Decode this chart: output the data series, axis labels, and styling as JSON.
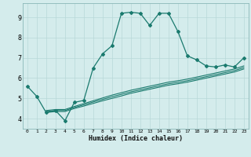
{
  "title": "",
  "xlabel": "Humidex (Indice chaleur)",
  "bg_color": "#d4ecec",
  "line_color": "#1a7a6e",
  "grid_color": "#b8d8d8",
  "xlim": [
    -0.5,
    23.5
  ],
  "ylim": [
    3.5,
    9.7
  ],
  "xticks": [
    0,
    1,
    2,
    3,
    4,
    5,
    6,
    7,
    8,
    9,
    10,
    11,
    12,
    13,
    14,
    15,
    16,
    17,
    18,
    19,
    20,
    21,
    22,
    23
  ],
  "yticks": [
    4,
    5,
    6,
    7,
    8,
    9
  ],
  "main_x": [
    0,
    1,
    2,
    3,
    4,
    5,
    6,
    7,
    8,
    9,
    10,
    11,
    12,
    13,
    14,
    15,
    16,
    17,
    18,
    19,
    20,
    21,
    22,
    23
  ],
  "main_y": [
    5.6,
    5.1,
    4.3,
    4.4,
    3.9,
    4.8,
    4.9,
    6.5,
    7.2,
    7.6,
    9.2,
    9.25,
    9.2,
    8.6,
    9.2,
    9.2,
    8.3,
    7.1,
    6.9,
    6.6,
    6.55,
    6.65,
    6.55,
    7.0
  ],
  "line1_x": [
    2,
    3,
    4,
    5,
    6,
    7,
    8,
    9,
    10,
    11,
    12,
    13,
    14,
    15,
    16,
    17,
    18,
    19,
    20,
    21,
    22,
    23
  ],
  "line1_y": [
    4.3,
    4.35,
    4.35,
    4.5,
    4.62,
    4.75,
    4.88,
    5.0,
    5.12,
    5.25,
    5.35,
    5.45,
    5.55,
    5.65,
    5.72,
    5.8,
    5.9,
    6.0,
    6.1,
    6.2,
    6.3,
    6.45
  ],
  "line2_x": [
    2,
    3,
    4,
    5,
    6,
    7,
    8,
    9,
    10,
    11,
    12,
    13,
    14,
    15,
    16,
    17,
    18,
    19,
    20,
    21,
    22,
    23
  ],
  "line2_y": [
    4.35,
    4.4,
    4.4,
    4.55,
    4.68,
    4.82,
    4.95,
    5.08,
    5.2,
    5.32,
    5.42,
    5.52,
    5.62,
    5.72,
    5.79,
    5.87,
    5.97,
    6.07,
    6.17,
    6.27,
    6.37,
    6.52
  ],
  "line3_x": [
    2,
    3,
    4,
    5,
    6,
    7,
    8,
    9,
    10,
    11,
    12,
    13,
    14,
    15,
    16,
    17,
    18,
    19,
    20,
    21,
    22,
    23
  ],
  "line3_y": [
    4.4,
    4.45,
    4.45,
    4.6,
    4.74,
    4.88,
    5.02,
    5.16,
    5.28,
    5.4,
    5.5,
    5.6,
    5.7,
    5.8,
    5.87,
    5.95,
    6.05,
    6.15,
    6.25,
    6.35,
    6.45,
    6.6
  ]
}
